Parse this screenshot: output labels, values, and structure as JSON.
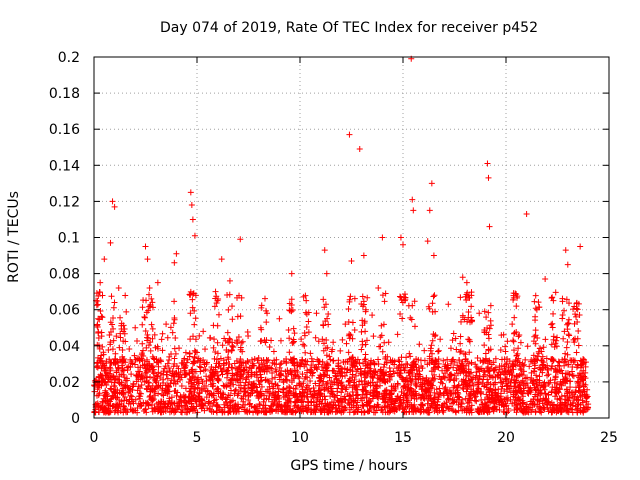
{
  "chart_data": {
    "type": "scatter",
    "title": "Day 074 of 2019, Rate Of TEC Index for receiver p452",
    "xlabel": "GPS time / hours",
    "ylabel": "ROTI / TECUs",
    "xlim": [
      0,
      25
    ],
    "ylim": [
      0,
      0.2
    ],
    "x_ticks": [
      0,
      5,
      10,
      15,
      20,
      25
    ],
    "x_tick_labels": [
      "0",
      "5",
      "10",
      "15",
      "20",
      "25"
    ],
    "y_ticks": [
      0,
      0.02,
      0.04,
      0.06,
      0.08,
      0.1,
      0.12,
      0.14,
      0.16,
      0.18,
      0.2
    ],
    "y_tick_labels": [
      "0",
      "0.02",
      "0.04",
      "0.06",
      "0.08",
      "0.1",
      "0.12",
      "0.14",
      "0.16",
      "0.18",
      "0.2"
    ],
    "grid": true,
    "marker": "+",
    "color": "#ff0000",
    "series": [
      {
        "name": "ROTI",
        "x": [
          0.1,
          0.3,
          0.9,
          1.0,
          4.7,
          4.75,
          4.8,
          4.9,
          12.4,
          12.9,
          15.4,
          15.45,
          15.5,
          19.1,
          19.15,
          16.4,
          16.3,
          21.0,
          23.6,
          7.1,
          0.5,
          0.8,
          2.5,
          2.6,
          2.7,
          3.9,
          4.0,
          1.2,
          3.1,
          5.9,
          6.0,
          6.6,
          6.7,
          6.2,
          9.6,
          10.3,
          11.3,
          11.2,
          12.5,
          13.1,
          14.0,
          13.8,
          14.9,
          15.0,
          16.2,
          16.5,
          17.9,
          18.1,
          18.2,
          19.2,
          20.5,
          21.5,
          21.9,
          22.3,
          22.9,
          23.0,
          8.4,
          8.1,
          0.2,
          2.0,
          3.5,
          5.3,
          9.0,
          10.8,
          12.2,
          13.5,
          17.2,
          18.7,
          20.3,
          23.4
        ],
        "y": [
          0.065,
          0.075,
          0.12,
          0.117,
          0.125,
          0.118,
          0.11,
          0.101,
          0.157,
          0.149,
          0.199,
          0.121,
          0.115,
          0.141,
          0.133,
          0.13,
          0.115,
          0.113,
          0.095,
          0.099,
          0.088,
          0.097,
          0.095,
          0.088,
          0.072,
          0.086,
          0.091,
          0.072,
          0.075,
          0.07,
          0.065,
          0.076,
          0.062,
          0.088,
          0.08,
          0.065,
          0.08,
          0.093,
          0.087,
          0.09,
          0.1,
          0.072,
          0.1,
          0.096,
          0.098,
          0.09,
          0.078,
          0.075,
          0.068,
          0.106,
          0.062,
          0.06,
          0.077,
          0.065,
          0.093,
          0.085,
          0.058,
          0.05,
          0.055,
          0.05,
          0.052,
          0.048,
          0.055,
          0.058,
          0.052,
          0.057,
          0.063,
          0.058,
          0.052,
          0.056
        ]
      }
    ]
  }
}
